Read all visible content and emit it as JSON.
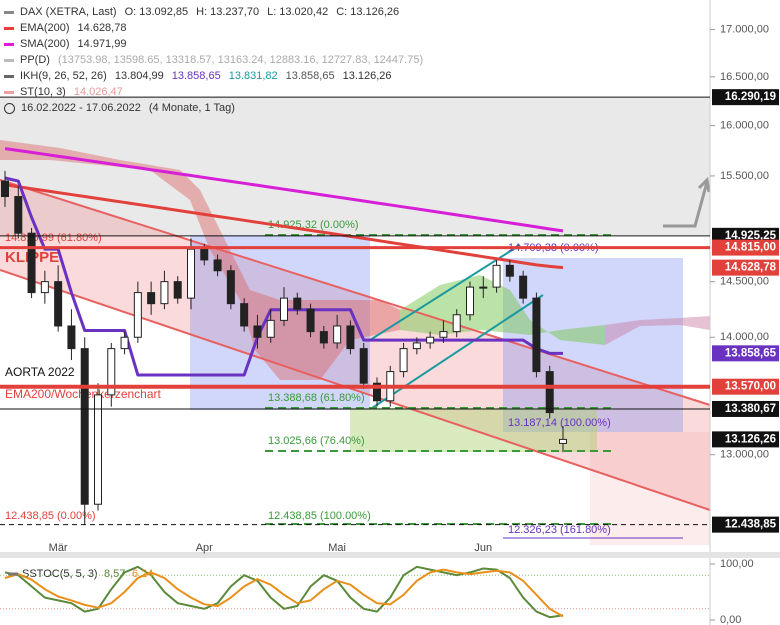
{
  "header": {
    "instrument": "DAX (XETRA, Last)",
    "ohlc": [
      {
        "label": "O:",
        "value": "13.092,85"
      },
      {
        "label": "H:",
        "value": "13.237,70"
      },
      {
        "label": "L:",
        "value": "13.020,42"
      },
      {
        "label": "C:",
        "value": "13.126,26"
      }
    ],
    "indicators": [
      {
        "name": "EMA(200)",
        "color": "#e2403b",
        "values": [
          {
            "text": "14.628,78",
            "color": "#333333"
          }
        ]
      },
      {
        "name": "SMA(200)",
        "color": "#d61fd6",
        "values": [
          {
            "text": "14.971,99",
            "color": "#333333"
          }
        ]
      },
      {
        "name": "PP(D)",
        "color": "#bbbbbb",
        "values": [
          {
            "text": "(13753.98, 13598.65, 13318.57, 13163.24, 12883.16, 12727.83, 12447.75)",
            "color": "#aaaaaa"
          }
        ]
      },
      {
        "name": "IKH(9, 26, 52, 26)",
        "color": "#666666",
        "values": [
          {
            "text": "13.804,99",
            "color": "#333333"
          },
          {
            "text": "13.858,65",
            "color": "#6a32c0"
          },
          {
            "text": "13.831,82",
            "color": "#1a9aa0"
          },
          {
            "text": "13.858,65",
            "color": "#555555"
          },
          {
            "text": "13.126,26",
            "color": "#333333"
          }
        ]
      },
      {
        "name": "ST(10, 3)",
        "color": "#f0a0a0",
        "values": [
          {
            "text": "14.026,47",
            "color": "#e59a9a"
          }
        ]
      }
    ],
    "range": "16.02.2022 - 17.06.2022",
    "span": "(4 Monate, 1 Tag)"
  },
  "chart_data": [
    {
      "type": "candlestick",
      "log": true,
      "categories": [
        null,
        null,
        null,
        null,
        "Mär",
        null,
        null,
        null,
        null,
        null,
        null,
        null,
        null,
        null,
        null,
        "Apr",
        null,
        null,
        null,
        null,
        null,
        null,
        null,
        null,
        null,
        "Mai",
        null,
        null,
        null,
        null,
        null,
        null,
        null,
        null,
        null,
        null,
        "Jun",
        null,
        null,
        null,
        null,
        null,
        null
      ],
      "open": [
        15450,
        15300,
        14950,
        14400,
        14500,
        14100,
        13900,
        12600,
        13500,
        13900,
        14000,
        14400,
        14300,
        14500,
        14350,
        14800,
        14700,
        14600,
        14300,
        14100,
        14000,
        14150,
        14350,
        14250,
        14050,
        13950,
        14100,
        13900,
        13600,
        13450,
        13700,
        13900,
        13950,
        14000,
        14050,
        14200,
        14450,
        14450,
        14650,
        14550,
        14350,
        13700,
        13092.85
      ],
      "high": [
        15550,
        15400,
        15000,
        14600,
        14650,
        14250,
        14000,
        13600,
        13950,
        14050,
        14500,
        14500,
        14600,
        14550,
        14900,
        14850,
        14750,
        14650,
        14350,
        14200,
        14250,
        14450,
        14400,
        14300,
        14100,
        14200,
        14150,
        13950,
        13650,
        13750,
        13950,
        14000,
        14050,
        14150,
        14250,
        14500,
        14550,
        14700,
        14700,
        14600,
        14400,
        13750,
        13237.7
      ],
      "low": [
        15200,
        14900,
        14350,
        14300,
        14050,
        13800,
        12438.85,
        12550,
        13400,
        13850,
        13950,
        14200,
        14250,
        14300,
        14250,
        14650,
        14550,
        14250,
        14050,
        13900,
        13950,
        14100,
        14200,
        14000,
        13900,
        13900,
        13850,
        13550,
        13400,
        13400,
        13650,
        13850,
        13900,
        13950,
        14000,
        14150,
        14350,
        14400,
        14500,
        14300,
        13650,
        13300,
        13020.42
      ],
      "close": [
        15300,
        14950,
        14400,
        14500,
        14100,
        13900,
        12600,
        13500,
        13900,
        14000,
        14400,
        14300,
        14500,
        14350,
        14800,
        14700,
        14600,
        14300,
        14100,
        14000,
        14150,
        14350,
        14250,
        14050,
        13950,
        14100,
        13900,
        13600,
        13450,
        13700,
        13900,
        13950,
        14000,
        14050,
        14200,
        14450,
        14450,
        14650,
        14550,
        14350,
        13700,
        13350,
        13126.26
      ],
      "up_color": "#ffffff",
      "down_color": "#222222",
      "series": [
        {
          "color": "#e2403b",
          "values": [
            15414,
            15395,
            15376,
            15357,
            15338,
            15319,
            15300,
            15281,
            15262,
            15243,
            15224,
            15205,
            15186,
            15167,
            15148,
            15129,
            15110,
            15091,
            15072,
            15053,
            15034,
            15015,
            14996,
            14977,
            14958,
            14939,
            14920,
            14901,
            14882,
            14863,
            14844,
            14825,
            14806,
            14787,
            14768,
            14749,
            14730,
            14711,
            14692,
            14673,
            14654,
            14640,
            14628.78
          ]
        },
        {
          "color": "#d61fd6",
          "values": [
            15770,
            15751,
            15732,
            15713,
            15694,
            15675,
            15656,
            15637,
            15618,
            15599,
            15580,
            15561,
            15542,
            15523,
            15504,
            15485,
            15466,
            15447,
            15428,
            15409,
            15390,
            15371,
            15352,
            15333,
            15314,
            15295,
            15276,
            15257,
            15238,
            15219,
            15200,
            15181,
            15162,
            15143,
            15124,
            15105,
            15086,
            15067,
            15048,
            15029,
            15010,
            14990,
            14971.99
          ]
        },
        {
          "color": "#6a32c0",
          "values": [
            15480,
            15450,
            15100,
            14800,
            14800,
            14400,
            14060,
            14060,
            14060,
            14060,
            13670,
            13670,
            13670,
            13670,
            13670,
            13670,
            13670,
            13670,
            13670,
            14000,
            14245,
            14245,
            14245,
            14245,
            14245,
            14245,
            14245,
            13975,
            13975,
            13975,
            13975,
            13975,
            13975,
            13975,
            13975,
            13975,
            13975,
            13975,
            13975,
            13975,
            13900,
            13858.65,
            13858.65
          ]
        }
      ],
      "ylim": [
        12280,
        17320
      ],
      "yticks": [
        {
          "value": 13000,
          "label": "13.000,00"
        },
        {
          "value": 14000,
          "label": "14.000,00"
        },
        {
          "value": 14500,
          "label": "14.500,00"
        },
        {
          "value": 15500,
          "label": "15.500,00"
        },
        {
          "value": 16000,
          "label": "16.000,00"
        },
        {
          "value": 16500,
          "label": "16.500,00"
        },
        {
          "value": 17000,
          "label": "17.000,00"
        }
      ],
      "levels": [
        {
          "value": 16290.19,
          "label": "16.290,19",
          "color": "#111111",
          "line": "solid",
          "width": 1
        },
        {
          "value": 14925.25,
          "label": "14.925,25",
          "color": "#111111",
          "line": "solid",
          "width": 1
        },
        {
          "value": 14815,
          "label": "14.815,00",
          "color": "#e2403b",
          "line": "solid",
          "width": 3
        },
        {
          "value": 14628.78,
          "label": "14.628,78",
          "color": "#e2403b",
          "line": "none",
          "width": 0
        },
        {
          "value": 13858.65,
          "label": "13.858,65",
          "color": "#6a32c0",
          "line": "none",
          "width": 0
        },
        {
          "value": 13570,
          "label": "13.570,00",
          "color": "#e2403b",
          "line": "solid",
          "width": 4
        },
        {
          "value": 13380.67,
          "label": "13.380,67",
          "color": "#111111",
          "line": "solid",
          "width": 1
        },
        {
          "value": 13126.26,
          "label": "13.126,26",
          "color": "#111111",
          "line": "none",
          "width": 0
        },
        {
          "value": 12438.85,
          "label": "12.438,85",
          "color": "#111111",
          "line": "dashed",
          "width": 1
        }
      ],
      "annotations": [
        "KLIPPE",
        "AORTA 2022",
        "EMA200/Wochenkerzenchart",
        "14.925,32 (0.00%)",
        "14.815,99 (61.80%)",
        "14.709,38 (0.00%)",
        "13.388,68 (61.80%)",
        "13.187,14 (100.00%)",
        "13.025,66 (76.40%)",
        "12.438,85 (0.00%)",
        "12.438,85 (100.00%)",
        "12.326,23 (161.80%)"
      ]
    },
    {
      "type": "line",
      "title": "SSTOC(5, 5, 3)",
      "series": [
        {
          "color": "#5a8a3a",
          "last_value_label": "8,57",
          "values": [
            85,
            80,
            60,
            40,
            35,
            30,
            15,
            20,
            55,
            85,
            95,
            80,
            50,
            30,
            25,
            20,
            30,
            60,
            80,
            70,
            40,
            20,
            25,
            60,
            80,
            70,
            40,
            20,
            15,
            40,
            80,
            95,
            90,
            85,
            80,
            85,
            92,
            90,
            75,
            40,
            15,
            5,
            8.57
          ]
        },
        {
          "color": "#e8901a",
          "last_value_label": "6,24",
          "values": [
            75,
            82,
            72,
            55,
            42,
            35,
            27,
            22,
            30,
            50,
            75,
            85,
            75,
            55,
            40,
            28,
            25,
            40,
            60,
            73,
            63,
            45,
            30,
            35,
            55,
            70,
            63,
            45,
            30,
            28,
            45,
            70,
            85,
            90,
            85,
            82,
            85,
            88,
            85,
            70,
            45,
            20,
            6.24
          ]
        }
      ],
      "ylim": [
        0,
        100
      ],
      "yticks": [
        {
          "value": 0,
          "label": "0,00"
        },
        {
          "value": 100,
          "label": "100,00"
        }
      ],
      "levels": [
        20,
        80
      ]
    }
  ]
}
